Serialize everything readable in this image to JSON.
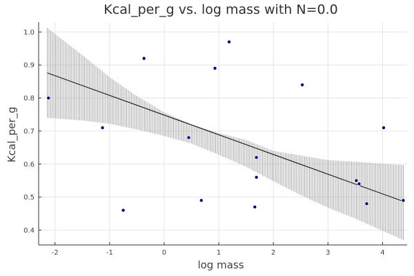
{
  "chart_data": {
    "type": "scatter",
    "title": "Kcal_per_g vs. log mass with N=0.0",
    "xlabel": "log mass",
    "ylabel": "Kcal_per_g",
    "xlim": [
      -2.3,
      4.45
    ],
    "ylim": [
      0.355,
      1.03
    ],
    "xticks": [
      -2,
      -1,
      0,
      1,
      2,
      3,
      4
    ],
    "yticks": [
      0.4,
      0.5,
      0.6,
      0.7,
      0.8,
      0.9,
      1.0
    ],
    "xtick_labels": [
      "-2",
      "-1",
      "0",
      "1",
      "2",
      "3",
      "4"
    ],
    "ytick_labels": [
      "0.4",
      "0.5",
      "0.6",
      "0.7",
      "0.8",
      "0.9",
      "1.0"
    ],
    "grid": true,
    "legend": "none",
    "points": {
      "x": [
        -2.12,
        -1.13,
        -0.75,
        -0.37,
        0.45,
        0.68,
        0.93,
        1.19,
        1.66,
        1.69,
        1.69,
        2.53,
        3.52,
        3.57,
        3.71,
        4.02,
        4.38
      ],
      "y": [
        0.8,
        0.71,
        0.46,
        0.92,
        0.68,
        0.49,
        0.89,
        0.97,
        0.47,
        0.56,
        0.62,
        0.84,
        0.55,
        0.54,
        0.48,
        0.71,
        0.49
      ],
      "color": "#000080"
    },
    "fit_line": {
      "x": [
        -2.14,
        4.38
      ],
      "y": [
        0.876,
        0.487
      ],
      "color": "#000000"
    },
    "interval": {
      "x": [
        -2.14,
        -1.5,
        -1.0,
        -0.5,
        0.0,
        0.5,
        1.0,
        1.5,
        2.0,
        2.5,
        3.0,
        3.5,
        4.0,
        4.38
      ],
      "lower": [
        0.74,
        0.732,
        0.722,
        0.705,
        0.685,
        0.662,
        0.628,
        0.592,
        0.548,
        0.506,
        0.468,
        0.435,
        0.398,
        0.37
      ],
      "upper": [
        1.012,
        0.93,
        0.863,
        0.806,
        0.757,
        0.72,
        0.694,
        0.673,
        0.64,
        0.626,
        0.612,
        0.607,
        0.601,
        0.597
      ],
      "color": "#a0a0a0"
    }
  }
}
